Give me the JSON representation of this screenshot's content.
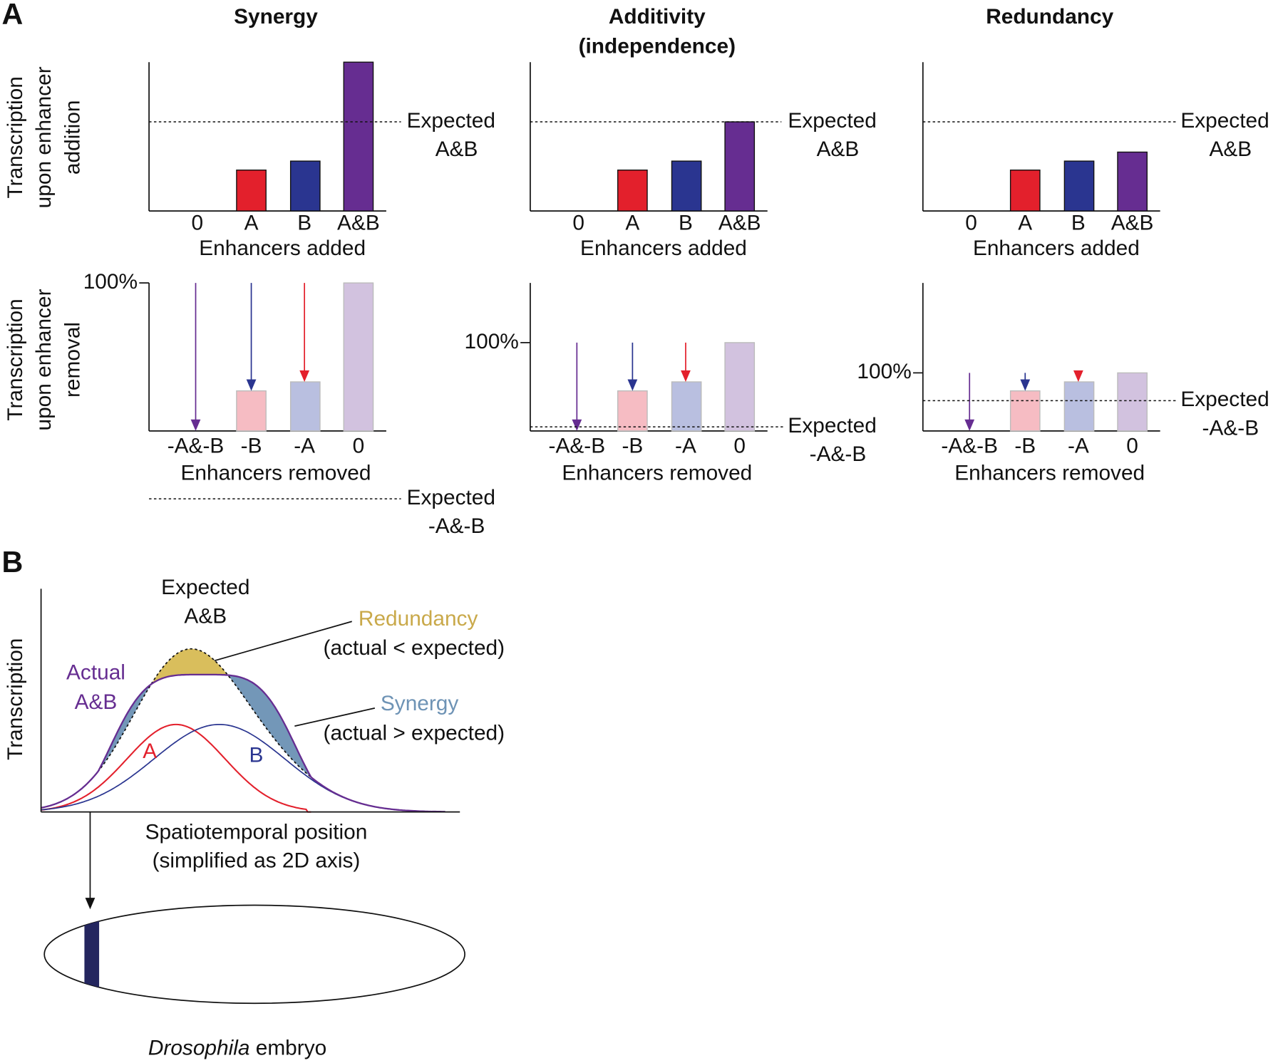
{
  "panel_a": {
    "label": "A",
    "y_labels": {
      "addition": [
        "Transcription",
        "upon enhancer",
        "addition"
      ],
      "removal": [
        "Transcription",
        "upon enhancer",
        "removal"
      ]
    },
    "columns": [
      {
        "title": [
          "Synergy"
        ],
        "added": {
          "categories": [
            "0",
            "A",
            "B",
            "A&B"
          ],
          "axis_title": "Enhancers added",
          "expected": [
            "Expected",
            "A&B"
          ]
        },
        "removed": {
          "tick": "100%",
          "categories": [
            "-A&-B",
            "-B",
            "-A",
            "0"
          ],
          "axis_title": "Enhancers removed",
          "expected": [
            "Expected",
            "-A&-B"
          ]
        }
      },
      {
        "title": [
          "Additivity",
          "(independence)"
        ],
        "added": {
          "categories": [
            "0",
            "A",
            "B",
            "A&B"
          ],
          "axis_title": "Enhancers added",
          "expected": [
            "Expected",
            "A&B"
          ]
        },
        "removed": {
          "tick": "100%",
          "categories": [
            "-A&-B",
            "-B",
            "-A",
            "0"
          ],
          "axis_title": "Enhancers removed",
          "expected": [
            "Expected",
            "-A&-B"
          ]
        }
      },
      {
        "title": [
          "Redundancy"
        ],
        "added": {
          "categories": [
            "0",
            "A",
            "B",
            "A&B"
          ],
          "axis_title": "Enhancers added",
          "expected": [
            "Expected",
            "A&B"
          ]
        },
        "removed": {
          "tick": "100%",
          "categories": [
            "-A&-B",
            "-B",
            "-A",
            "0"
          ],
          "axis_title": "Enhancers removed",
          "expected": [
            "Expected",
            "-A&-B"
          ]
        }
      }
    ]
  },
  "panel_b": {
    "label": "B",
    "y_label": "Transcription",
    "expected": [
      "Expected",
      "A&B"
    ],
    "actual": [
      "Actual",
      "A&B"
    ],
    "redundancy": [
      "Redundancy",
      "(actual < expected)"
    ],
    "synergy": [
      "Synergy",
      "(actual > expected)"
    ],
    "curve_a": "A",
    "curve_b": "B",
    "x_label": [
      "Spatiotemporal position",
      "(simplified as 2D axis)"
    ],
    "embryo_label": {
      "italic": "Drosophila",
      "rest": "embryo"
    }
  }
}
